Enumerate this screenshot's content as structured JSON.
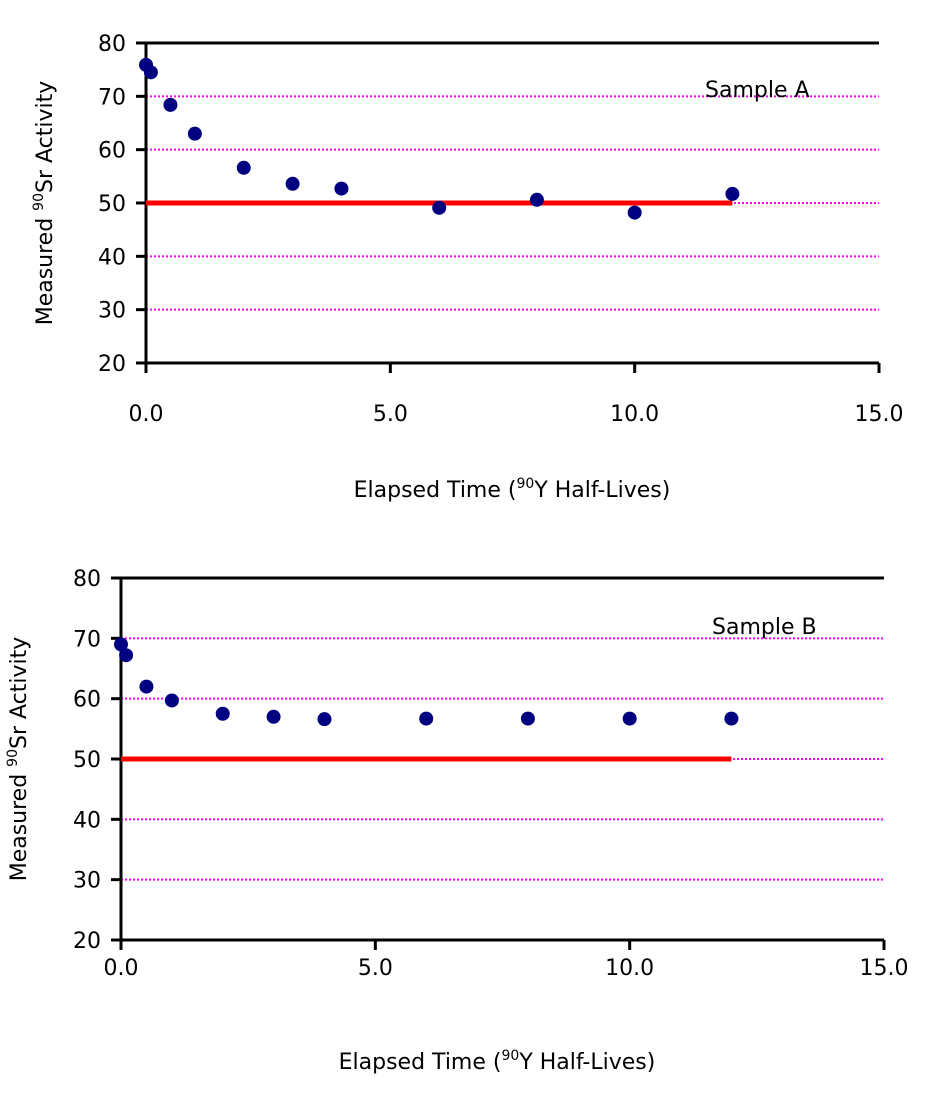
{
  "chart_data": [
    {
      "type": "scatter",
      "annotation": "Sample A",
      "xlabel": {
        "pre": "Elapsed Time (",
        "sup": "90",
        "post": "Y Half-Lives)"
      },
      "ylabel": {
        "pre": "Measured ",
        "sup": "90",
        "post": "Sr Activity"
      },
      "xlim": [
        0,
        15
      ],
      "ylim": [
        20,
        80
      ],
      "xticks": [
        "0.0",
        "5.0",
        "10.0",
        "15.0"
      ],
      "xtick_values": [
        0,
        5,
        10,
        15
      ],
      "yticks": [
        "20",
        "30",
        "40",
        "50",
        "60",
        "70",
        "80"
      ],
      "ytick_values": [
        20,
        30,
        40,
        50,
        60,
        70,
        80
      ],
      "grid": "horizontal dotted",
      "points": {
        "x": [
          0,
          0.1,
          0.5,
          1,
          2,
          3,
          4,
          6,
          8,
          10,
          12
        ],
        "y": [
          75.9,
          74.5,
          68.4,
          63.0,
          56.6,
          53.6,
          52.7,
          49.1,
          50.6,
          48.2,
          51.7
        ]
      },
      "reference_line": {
        "y": 50,
        "x": [
          0,
          12
        ]
      },
      "colors": {
        "points": "#000080",
        "reference_line": "#ff0000",
        "grid": "#ff00ff"
      }
    },
    {
      "type": "scatter",
      "annotation": "Sample B",
      "xlabel": {
        "pre": "Elapsed Time (",
        "sup": "90",
        "post": "Y Half-Lives)"
      },
      "ylabel": {
        "pre": "Measured ",
        "sup": "90",
        "post": "Sr Activity"
      },
      "xlim": [
        0,
        15
      ],
      "ylim": [
        20,
        80
      ],
      "xticks": [
        "0.0",
        "5.0",
        "10.0",
        "15.0"
      ],
      "xtick_values": [
        0,
        5,
        10,
        15
      ],
      "yticks": [
        "20",
        "30",
        "40",
        "50",
        "60",
        "70",
        "80"
      ],
      "ytick_values": [
        20,
        30,
        40,
        50,
        60,
        70,
        80
      ],
      "grid": "horizontal dotted",
      "points": {
        "x": [
          0,
          0.1,
          0.5,
          1,
          2,
          3,
          4,
          6,
          8,
          10,
          12
        ],
        "y": [
          69.0,
          67.2,
          62.0,
          59.7,
          57.5,
          57.0,
          56.6,
          56.7,
          56.7,
          56.7,
          56.7
        ]
      },
      "reference_line": {
        "y": 50,
        "x": [
          0,
          12
        ]
      },
      "colors": {
        "points": "#000080",
        "reference_line": "#ff0000",
        "grid": "#ff00ff"
      }
    }
  ]
}
